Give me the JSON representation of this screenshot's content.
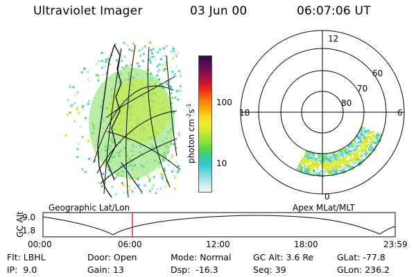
{
  "header": {
    "instrument": "Ultraviolet Imager",
    "date": "03 Jun 00",
    "time": "06:07:06 UT"
  },
  "colorbar": {
    "label": "photon cm",
    "label_sup1": "-2",
    "label_mid": "s",
    "label_sup2": "-1",
    "ticks": [
      "100",
      "10"
    ],
    "colors": [
      "#2a0a3a",
      "#5a0c5a",
      "#8c0e4a",
      "#c41432",
      "#ee2a1c",
      "#f66a10",
      "#fba40c",
      "#fdd41a",
      "#f2ec2e",
      "#c6ec34",
      "#8ee23c",
      "#52d64a",
      "#32cca8",
      "#38c8d4",
      "#86dce4",
      "#c6ecf0",
      "#f2f8f8"
    ]
  },
  "left_map": {
    "caption": "Geographic Lat/Lon"
  },
  "polar": {
    "caption": "Apex MLat/MLT",
    "mlt_labels": {
      "top": "12",
      "left": "18",
      "right": "6",
      "bottom": "0"
    },
    "lat_labels": [
      "60",
      "70",
      "80"
    ]
  },
  "altitude_plot": {
    "ylabel": "GC Alt",
    "ymax": "9.0",
    "ymin": "1.8",
    "ticks": [
      "00:00",
      "06:00",
      "12:00",
      "18:00",
      "23:59"
    ],
    "current_time_fraction": 0.254
  },
  "info": {
    "col1": [
      {
        "label": "Flt:",
        "value": "LBHL"
      },
      {
        "label": "IP:",
        "value": "9.0"
      }
    ],
    "col2": [
      {
        "label": "Door:",
        "value": "Open"
      },
      {
        "label": "Gain:",
        "value": "13"
      }
    ],
    "col3": [
      {
        "label": "Mode:",
        "value": "Normal"
      },
      {
        "label": "Dsp:",
        "value": "-16.3"
      }
    ],
    "col4": [
      {
        "label": "GC Alt:",
        "value": "3.6 Re"
      },
      {
        "label": "Seq:",
        "value": "39"
      }
    ],
    "col5": [
      {
        "label": "GLat:",
        "value": "-77.8"
      },
      {
        "label": "GLon:",
        "value": "236.2"
      }
    ]
  }
}
